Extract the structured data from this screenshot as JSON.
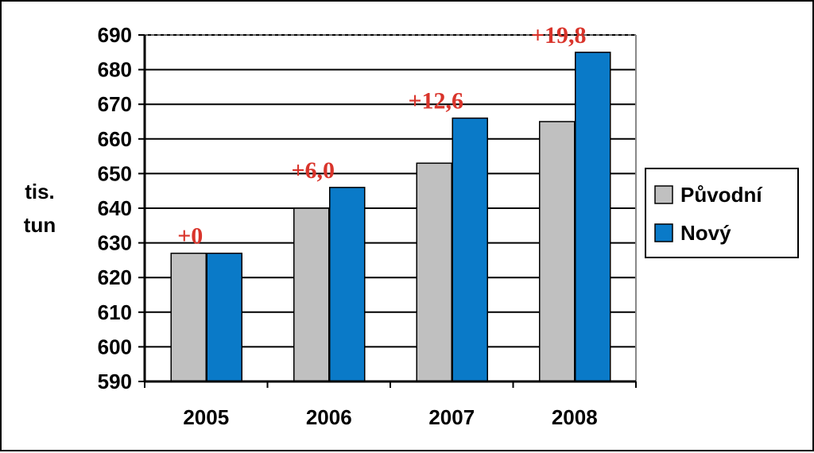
{
  "chart_data": {
    "type": "bar",
    "title": "",
    "xlabel": "",
    "ylabel": [
      "tis.",
      "tun"
    ],
    "categories": [
      "2005",
      "2006",
      "2007",
      "2008"
    ],
    "ylim": [
      590,
      690
    ],
    "yticks": [
      690,
      680,
      670,
      660,
      650,
      640,
      630,
      620,
      610,
      600,
      590
    ],
    "grid": true,
    "legend_position": "right",
    "series": [
      {
        "name": "Původní",
        "color": "#c0c0c0",
        "values": [
          627,
          640,
          653,
          665
        ]
      },
      {
        "name": "Nový",
        "color": "#0a7ac8",
        "values": [
          627,
          646,
          666,
          685
        ]
      }
    ],
    "annotations": [
      "+0",
      "+6,0",
      "+12,6",
      "+19,8"
    ],
    "annotation_color": "#d9342b"
  }
}
